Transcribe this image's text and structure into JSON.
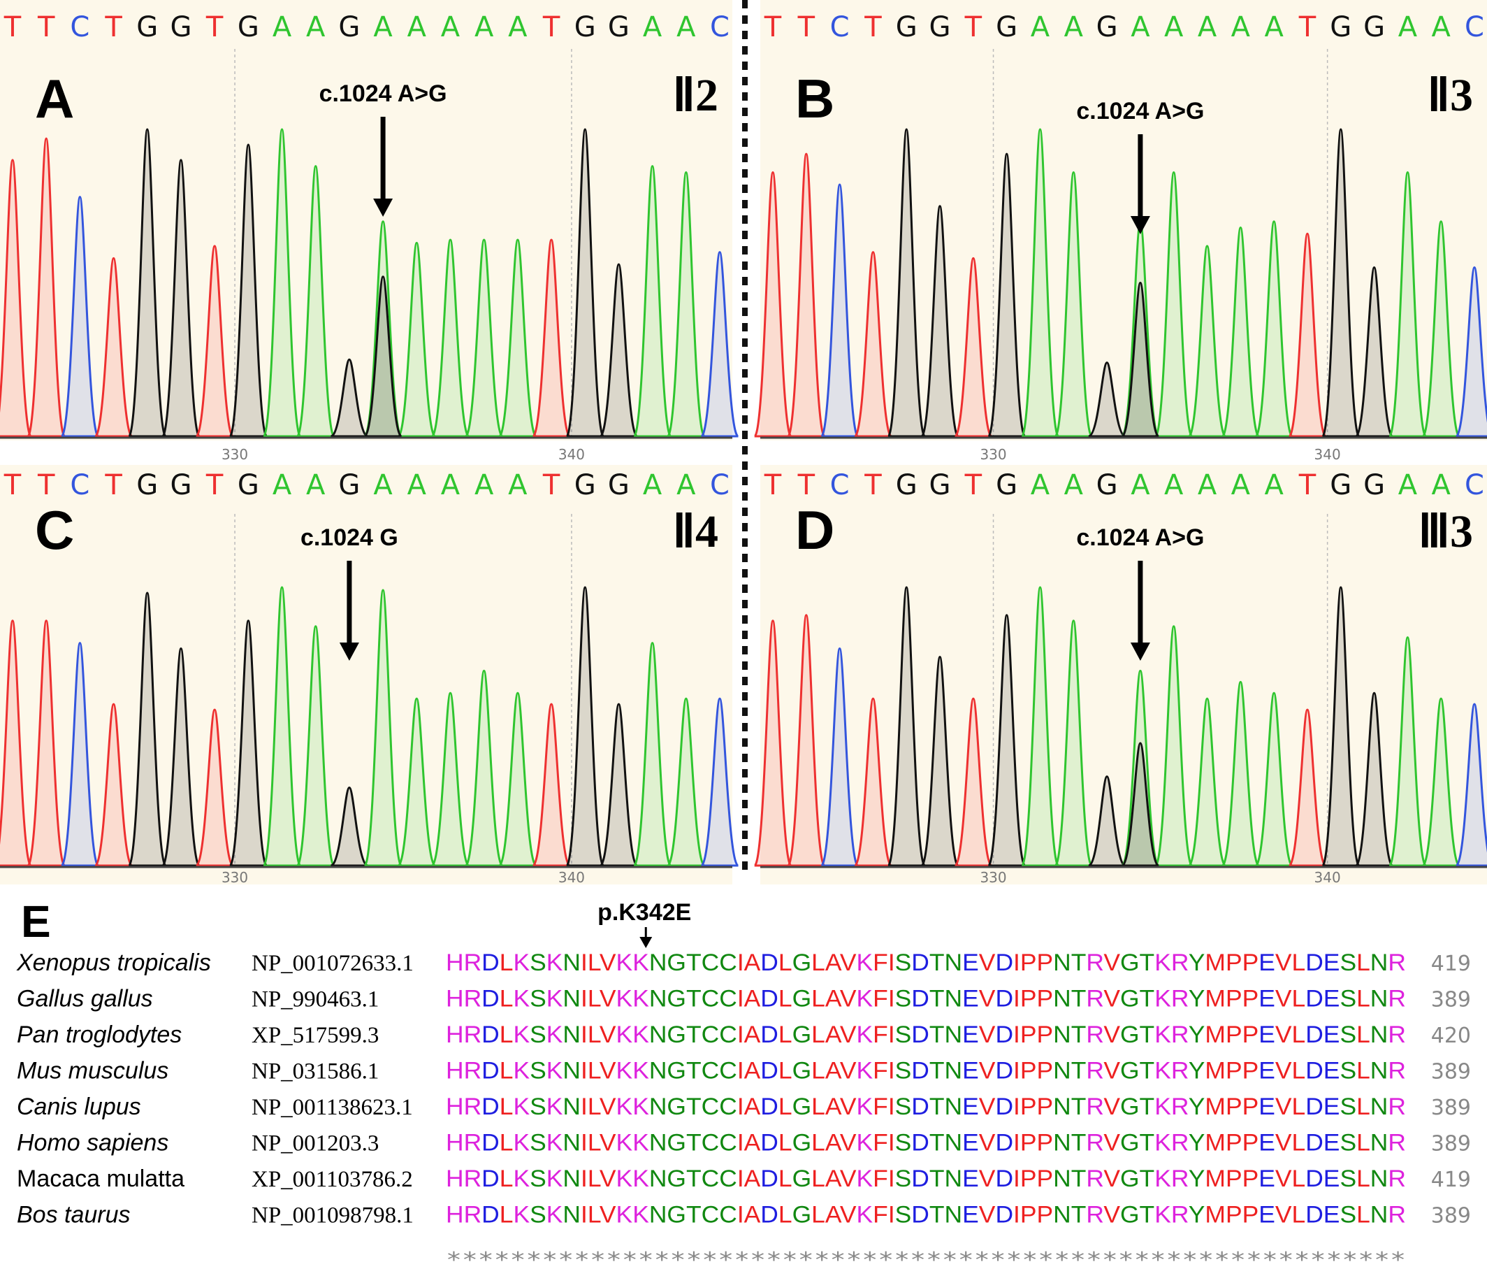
{
  "colors": {
    "A": "#2fc52f",
    "C": "#3355dd",
    "G": "#111111",
    "T": "#ee3030",
    "panel_bg": "#fdf8ea",
    "aa_green": "#118811",
    "aa_pink": "#dd22dd",
    "aa_red": "#ee2020",
    "aa_blue": "#1e1ee0"
  },
  "reference_sequence": [
    "T",
    "T",
    "C",
    "T",
    "G",
    "G",
    "T",
    "G",
    "A",
    "A",
    "G",
    "A",
    "A",
    "A",
    "A",
    "A",
    "T",
    "G",
    "G",
    "A",
    "A",
    "C"
  ],
  "panels": [
    {
      "label": "A",
      "sample": "Ⅱ2",
      "mutation": "c.1024 A>G",
      "ticks": [
        "330",
        "340"
      ],
      "mutant_peak_g": 0.52
    },
    {
      "label": "B",
      "sample": "Ⅱ3",
      "mutation": "c.1024 A>G",
      "ticks": [
        "330",
        "340"
      ],
      "mutant_peak_g": 0.5
    },
    {
      "label": "C",
      "sample": "Ⅱ4",
      "mutation": "c.1024 G",
      "ticks": [
        "330",
        "340"
      ],
      "mutant_peak_g": 0.0
    },
    {
      "label": "D",
      "sample": "Ⅲ3",
      "mutation": "c.1024 A>G",
      "ticks": [
        "330",
        "340"
      ],
      "mutant_peak_g": 0.44
    }
  ],
  "alignment": {
    "label": "E",
    "site_label": "p.K342E",
    "rows": [
      {
        "species": "Xenopus tropicalis",
        "italic": true,
        "accession": "NP_001072633.1",
        "sequence": "HRDLKSKNILVKKNGTCCIADLGLAVKFISDTNEVDIPPNTRVGTKRYMPPEVLDESLNR",
        "end": "419"
      },
      {
        "species": "Gallus gallus",
        "italic": true,
        "accession": "NP_990463.1",
        "sequence": "HRDLKSKNILVKKNGTCCIADLGLAVKFISDTNEVDIPPNTRVGTKRYMPPEVLDESLNR",
        "end": "389"
      },
      {
        "species": "Pan troglodytes",
        "italic": true,
        "accession": "XP_517599.3",
        "sequence": "HRDLKSKNILVKKNGTCCIADLGLAVKFISDTNEVDIPPNTRVGTKRYMPPEVLDESLNR",
        "end": "420"
      },
      {
        "species": "Mus musculus",
        "italic": true,
        "accession": "NP_031586.1",
        "sequence": "HRDLKSKNILVKKNGTCCIADLGLAVKFISDTNEVDIPPNTRVGTKRYMPPEVLDESLNR",
        "end": "389"
      },
      {
        "species": "Canis lupus",
        "italic": true,
        "accession": "NP_001138623.1",
        "sequence": "HRDLKSKNILVKKNGTCCIADLGLAVKFISDTNEVDIPPNTRVGTKRYMPPEVLDESLNR",
        "end": "389"
      },
      {
        "species": "Homo sapiens",
        "italic": true,
        "accession": "NP_001203.3",
        "sequence": "HRDLKSKNILVKKNGTCCIADLGLAVKFISDTNEVDIPPNTRVGTKRYMPPEVLDESLNR",
        "end": "389"
      },
      {
        "species": "Macaca mulatta",
        "italic": false,
        "accession": "XP_001103786.2",
        "sequence": "HRDLKSKNILVKKNGTCCIADLGLAVKFISDTNEVDIPPNTRVGTKRYMPPEVLDESLNR",
        "end": "419"
      },
      {
        "species": "Bos taurus",
        "italic": true,
        "accession": "NP_001098798.1",
        "sequence": "HRDLKSKNILVKKNGTCCIADLGLAVKFISDTNEVDIPPNTRVGTKRYMPPEVLDESLNR",
        "end": "389"
      }
    ],
    "conservation": "************************************************************"
  }
}
